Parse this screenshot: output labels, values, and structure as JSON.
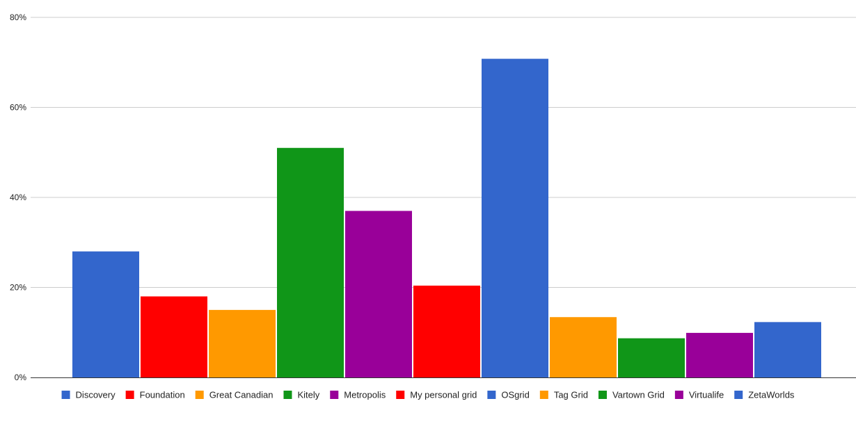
{
  "chart_data": {
    "type": "bar",
    "ylim": [
      0,
      80
    ],
    "y_ticks": [
      "0%",
      "20%",
      "40%",
      "60%",
      "80%"
    ],
    "y_tick_values": [
      0,
      20,
      40,
      60,
      80
    ],
    "grid": true,
    "legend_position": "bottom",
    "series": [
      {
        "name": "Discovery",
        "value": 28,
        "color": "#3366cc"
      },
      {
        "name": "Foundation",
        "value": 18,
        "color": "#ff0000"
      },
      {
        "name": "Great Canadian",
        "value": 15,
        "color": "#ff9900"
      },
      {
        "name": "Kitely",
        "value": 51,
        "color": "#109618"
      },
      {
        "name": "Metropolis",
        "value": 37,
        "color": "#990099"
      },
      {
        "name": "My personal grid",
        "value": 20.4,
        "color": "#ff0000"
      },
      {
        "name": "OSgrid",
        "value": 70.8,
        "color": "#3366cc"
      },
      {
        "name": "Tag Grid",
        "value": 13.4,
        "color": "#ff9900"
      },
      {
        "name": "Vartown Grid",
        "value": 8.7,
        "color": "#109618"
      },
      {
        "name": "Virtualife",
        "value": 9.9,
        "color": "#990099"
      },
      {
        "name": "ZetaWorlds",
        "value": 12.3,
        "color": "#3366cc"
      }
    ]
  }
}
